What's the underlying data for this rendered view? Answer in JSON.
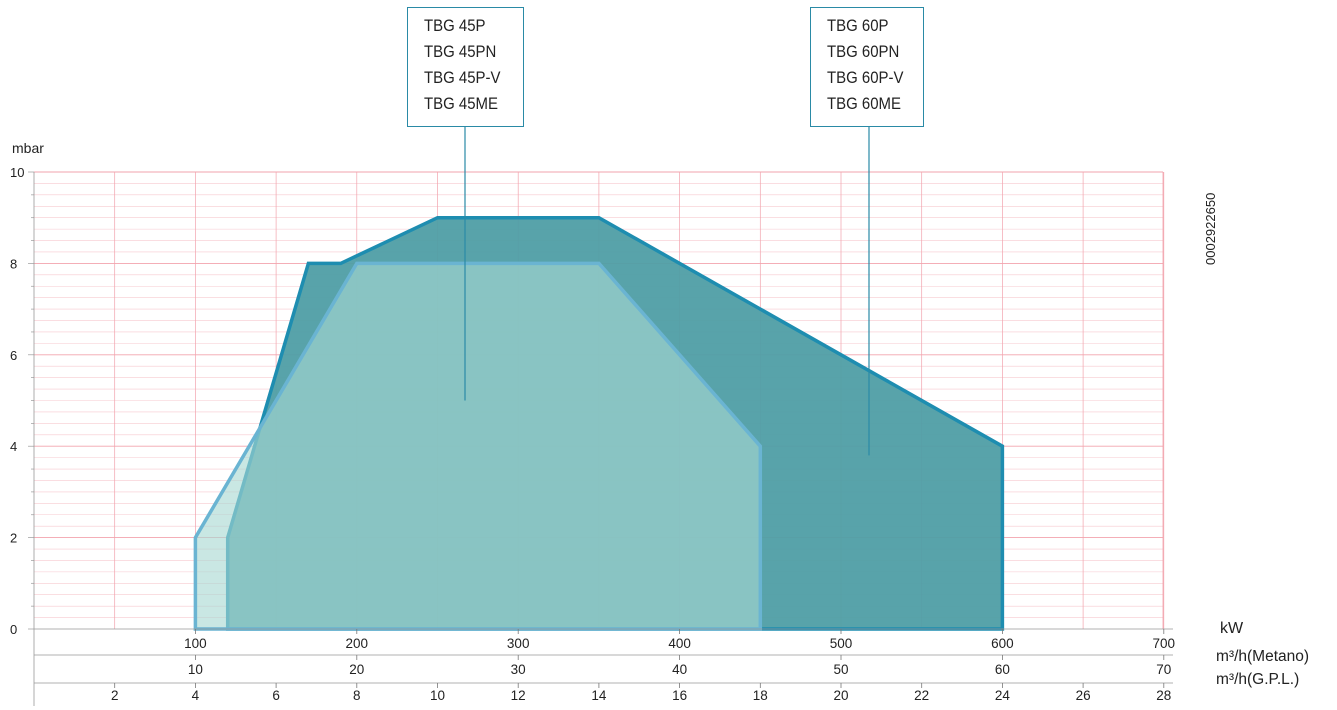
{
  "chart_data": {
    "type": "area",
    "ylabel": "mbar",
    "ylim": [
      0,
      10
    ],
    "yticks": [
      0,
      2,
      4,
      6,
      8,
      10
    ],
    "code": "0002922650",
    "axes": [
      {
        "unit": "kW",
        "range": [
          0,
          700
        ],
        "ticks": [
          100,
          200,
          300,
          400,
          500,
          600,
          700
        ]
      },
      {
        "unit": "m³/h(Metano)",
        "range": [
          0,
          70
        ],
        "ticks": [
          10,
          20,
          30,
          40,
          50,
          60,
          70
        ]
      },
      {
        "unit": "m³/h(G.P.L.)",
        "range": [
          0,
          28
        ],
        "ticks": [
          2,
          4,
          6,
          8,
          10,
          12,
          14,
          16,
          18,
          20,
          22,
          24,
          26,
          28
        ]
      }
    ],
    "series": [
      {
        "name": "TBG 60P / TBG 60PN / TBG 60P-V / TBG 60ME",
        "color": "#1e8db0",
        "fill": "#4f9ea5",
        "points": [
          [
            120,
            0
          ],
          [
            120,
            2
          ],
          [
            170,
            8
          ],
          [
            190,
            8
          ],
          [
            250,
            9
          ],
          [
            350,
            9
          ],
          [
            600,
            4
          ],
          [
            600,
            0
          ]
        ]
      },
      {
        "name": "TBG 45P / TBG 45PN / TBG 45P-V / TBG 45ME",
        "color": "#6ab4d2",
        "fill": "#a8d8d2",
        "points": [
          [
            100,
            0
          ],
          [
            100,
            2
          ],
          [
            200,
            8
          ],
          [
            350,
            8
          ],
          [
            450,
            4
          ],
          [
            450,
            0
          ]
        ]
      }
    ],
    "legends": [
      {
        "lines": [
          "TBG 45P",
          "TBG 45PN",
          "TBG 45P-V",
          "TBG 45ME"
        ],
        "pointer": [
          265,
          5
        ]
      },
      {
        "lines": [
          "TBG 60P",
          "TBG 60PN",
          "TBG 60P-V",
          "TBG 60ME"
        ],
        "pointer": [
          515,
          3.8
        ]
      }
    ]
  }
}
